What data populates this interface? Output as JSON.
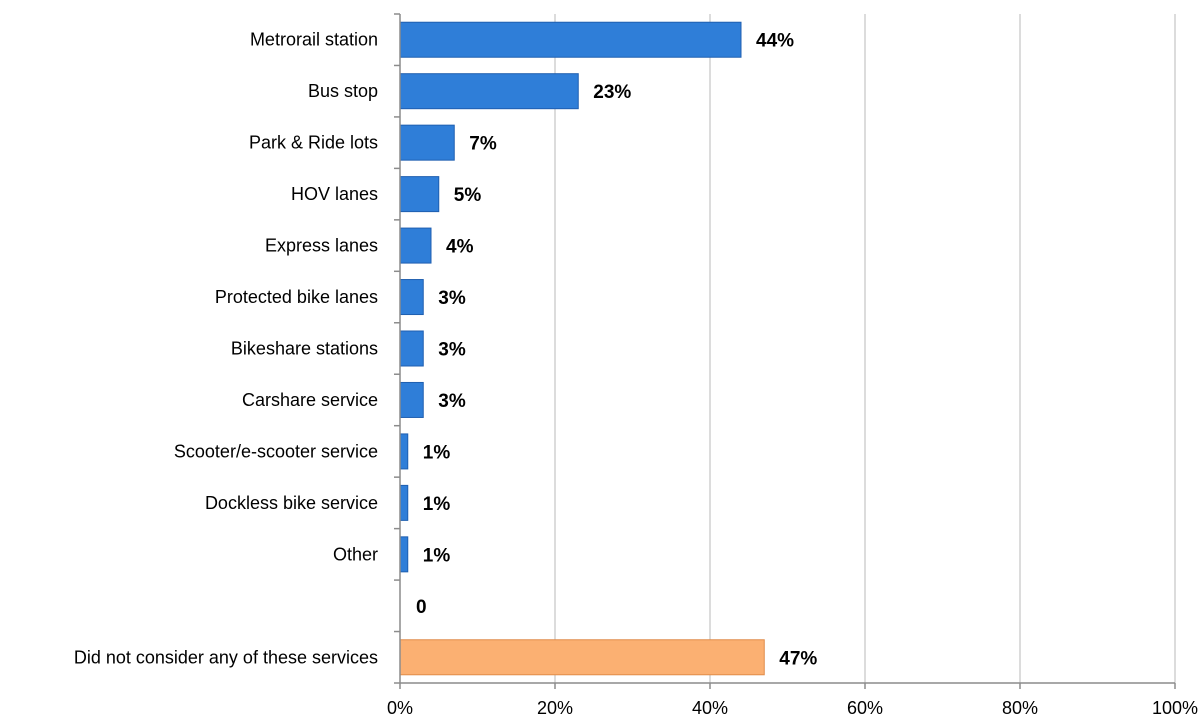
{
  "chart_data": {
    "type": "bar",
    "orientation": "horizontal",
    "title": "",
    "xlabel": "",
    "ylabel": "",
    "xlim": [
      0,
      100
    ],
    "x_ticks": [
      "0%",
      "20%",
      "40%",
      "60%",
      "80%",
      "100%"
    ],
    "x_tick_values": [
      0,
      20,
      40,
      60,
      80,
      100
    ],
    "grid": "vertical",
    "legend": "none",
    "categories": [
      "Metrorail station",
      "Bus stop",
      "Park & Ride lots",
      "HOV lanes",
      "Express lanes",
      "Protected bike lanes",
      "Bikeshare stations",
      "Carshare service",
      "Scooter/e-scooter service",
      "Dockless bike service",
      "Other",
      "",
      "Did not consider any of these services"
    ],
    "values": [
      44,
      23,
      7,
      5,
      4,
      3,
      3,
      3,
      1,
      1,
      1,
      0,
      47
    ],
    "data_labels": [
      "44%",
      "23%",
      "7%",
      "5%",
      "4%",
      "3%",
      "3%",
      "3%",
      "1%",
      "1%",
      "1%",
      "0",
      "47%"
    ],
    "bar_colors": [
      "#2f7ed8",
      "#2f7ed8",
      "#2f7ed8",
      "#2f7ed8",
      "#2f7ed8",
      "#2f7ed8",
      "#2f7ed8",
      "#2f7ed8",
      "#2f7ed8",
      "#2f7ed8",
      "#2f7ed8",
      "#2f7ed8",
      "#fbb072"
    ],
    "bar_edge_colors": [
      "#1f5fb0",
      "#1f5fb0",
      "#1f5fb0",
      "#1f5fb0",
      "#1f5fb0",
      "#1f5fb0",
      "#1f5fb0",
      "#1f5fb0",
      "#1f5fb0",
      "#1f5fb0",
      "#1f5fb0",
      "#1f5fb0",
      "#e08c4a"
    ],
    "grid_color": "#d0d0d0",
    "axis_color": "#8c8c8c"
  }
}
